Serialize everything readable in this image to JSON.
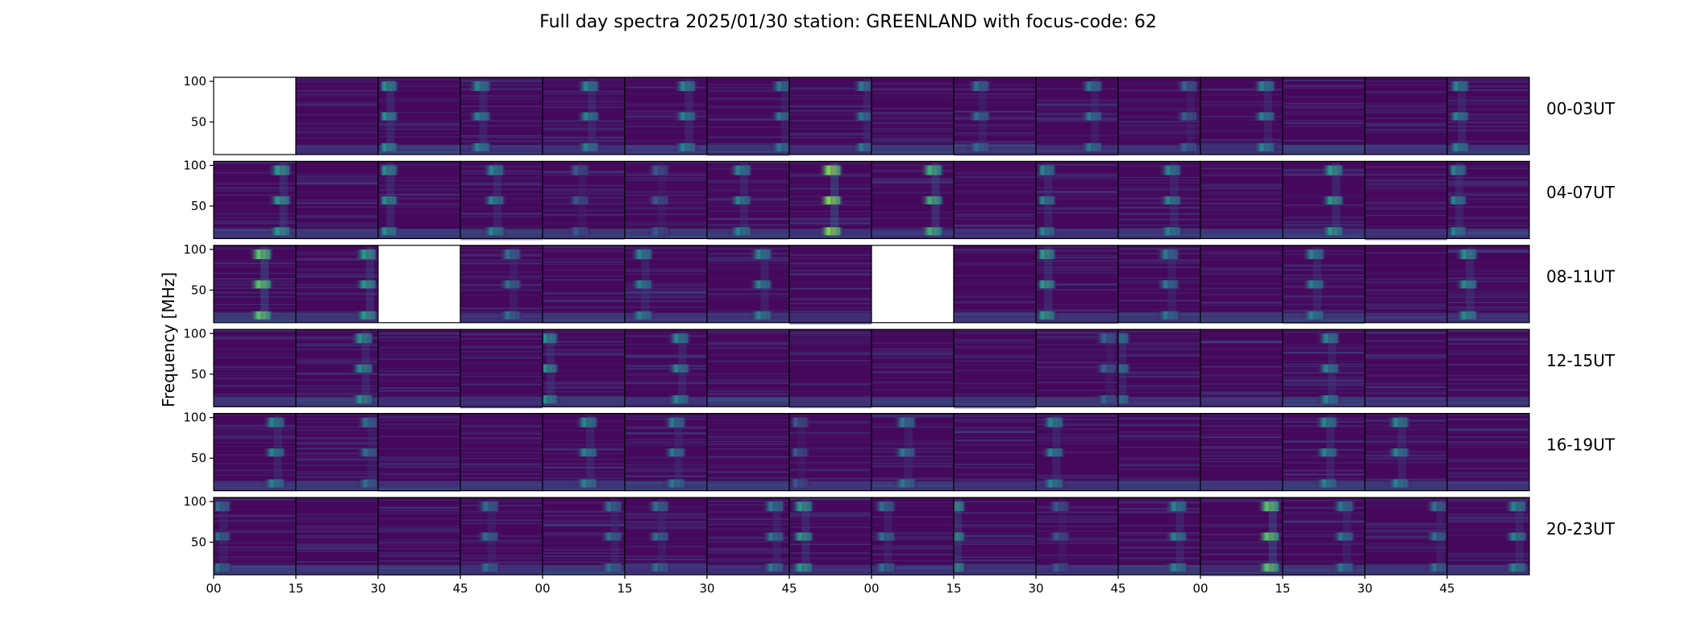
{
  "chart_data": {
    "type": "heatmap",
    "title": "Full day spectra 2025/01/30 station: GREENLAND with focus-code: 62",
    "ylabel": "Frequency [MHz]",
    "xlabel": "",
    "ylim": [
      10,
      105
    ],
    "y_ticks": [
      50,
      100
    ],
    "x_tick_labels": [
      "00",
      "15",
      "30",
      "45",
      "00",
      "15",
      "30",
      "45",
      "00",
      "15",
      "30",
      "45",
      "00",
      "15",
      "30",
      "45"
    ],
    "colormap": "viridis",
    "colormap_stops": [
      "#440154",
      "#3b528b",
      "#21918c",
      "#5ec962",
      "#fde725"
    ],
    "background_color": "#46085c",
    "missing_color": "#ffffff",
    "panels_per_row": 16,
    "panel_minutes": 15,
    "emission_bands_mhz": [
      [
        88,
        100
      ],
      [
        52,
        62
      ],
      [
        14,
        24
      ]
    ],
    "rows": [
      {
        "label": "00-03UT",
        "cells": [
          {
            "missing": true
          },
          {
            "burst_at": null,
            "intensity": 0.0
          },
          {
            "burst_at": 0.15,
            "intensity": 0.55
          },
          {
            "burst_at": 0.28,
            "intensity": 0.5
          },
          {
            "burst_at": 0.6,
            "intensity": 0.5
          },
          {
            "burst_at": 0.78,
            "intensity": 0.5
          },
          {
            "burst_at": 0.95,
            "intensity": 0.45
          },
          {
            "burst_at": 0.95,
            "intensity": 0.45
          },
          {
            "burst_at": null,
            "intensity": 0.0
          },
          {
            "burst_at": 0.35,
            "intensity": 0.4
          },
          {
            "burst_at": 0.72,
            "intensity": 0.45
          },
          {
            "burst_at": 0.88,
            "intensity": 0.35
          },
          {
            "burst_at": 0.82,
            "intensity": 0.5
          },
          {
            "burst_at": null,
            "intensity": 0.0
          },
          {
            "burst_at": null,
            "intensity": 0.0
          },
          {
            "burst_at": 0.18,
            "intensity": 0.5
          }
        ]
      },
      {
        "label": "04-07UT",
        "cells": [
          {
            "burst_at": 0.85,
            "intensity": 0.6
          },
          {
            "burst_at": null,
            "intensity": 0.0
          },
          {
            "burst_at": 0.15,
            "intensity": 0.55
          },
          {
            "burst_at": 0.45,
            "intensity": 0.5
          },
          {
            "burst_at": 0.48,
            "intensity": 0.3
          },
          {
            "burst_at": 0.45,
            "intensity": 0.3
          },
          {
            "burst_at": 0.45,
            "intensity": 0.5
          },
          {
            "burst_at": 0.55,
            "intensity": 0.9
          },
          {
            "burst_at": 0.78,
            "intensity": 0.7
          },
          {
            "burst_at": null,
            "intensity": 0.0
          },
          {
            "burst_at": 0.15,
            "intensity": 0.5
          },
          {
            "burst_at": 0.68,
            "intensity": 0.5
          },
          {
            "burst_at": null,
            "intensity": 0.0
          },
          {
            "burst_at": 0.65,
            "intensity": 0.6
          },
          {
            "burst_at": null,
            "intensity": 0.1
          },
          {
            "burst_at": 0.15,
            "intensity": 0.5
          }
        ]
      },
      {
        "label": "08-11UT",
        "cells": [
          {
            "burst_at": 0.62,
            "intensity": 0.8
          },
          {
            "burst_at": 0.9,
            "intensity": 0.6
          },
          {
            "missing": true
          },
          {
            "burst_at": 0.65,
            "intensity": 0.4
          },
          {
            "burst_at": null,
            "intensity": 0.0
          },
          {
            "burst_at": 0.25,
            "intensity": 0.5
          },
          {
            "burst_at": 0.7,
            "intensity": 0.5
          },
          {
            "burst_at": null,
            "intensity": 0.0
          },
          {
            "missing": true
          },
          {
            "burst_at": null,
            "intensity": 0.0
          },
          {
            "burst_at": 0.15,
            "intensity": 0.6
          },
          {
            "burst_at": 0.65,
            "intensity": 0.45
          },
          {
            "burst_at": null,
            "intensity": 0.0
          },
          {
            "burst_at": 0.42,
            "intensity": 0.5
          },
          {
            "burst_at": null,
            "intensity": 0.0
          },
          {
            "burst_at": 0.28,
            "intensity": 0.55
          }
        ]
      },
      {
        "label": "12-15UT",
        "cells": [
          {
            "burst_at": null,
            "intensity": 0.0
          },
          {
            "burst_at": 0.85,
            "intensity": 0.55
          },
          {
            "burst_at": null,
            "intensity": 0.0
          },
          {
            "burst_at": null,
            "intensity": 0.0
          },
          {
            "burst_at": 0.1,
            "intensity": 0.55
          },
          {
            "burst_at": 0.7,
            "intensity": 0.5
          },
          {
            "burst_at": null,
            "intensity": 0.0
          },
          {
            "burst_at": null,
            "intensity": 0.0
          },
          {
            "burst_at": null,
            "intensity": 0.0
          },
          {
            "burst_at": null,
            "intensity": 0.0
          },
          {
            "burst_at": 0.9,
            "intensity": 0.35
          },
          {
            "burst_at": 0.05,
            "intensity": 0.5
          },
          {
            "burst_at": null,
            "intensity": 0.0
          },
          {
            "burst_at": 0.6,
            "intensity": 0.5
          },
          {
            "burst_at": null,
            "intensity": 0.1
          },
          {
            "burst_at": null,
            "intensity": 0.1
          }
        ]
      },
      {
        "label": "16-19UT",
        "cells": [
          {
            "burst_at": 0.78,
            "intensity": 0.5
          },
          {
            "burst_at": 0.92,
            "intensity": 0.4
          },
          {
            "burst_at": null,
            "intensity": 0.0
          },
          {
            "burst_at": null,
            "intensity": 0.0
          },
          {
            "burst_at": 0.58,
            "intensity": 0.5
          },
          {
            "burst_at": 0.65,
            "intensity": 0.45
          },
          {
            "burst_at": null,
            "intensity": 0.0
          },
          {
            "burst_at": 0.15,
            "intensity": 0.3
          },
          {
            "burst_at": 0.45,
            "intensity": 0.45
          },
          {
            "burst_at": null,
            "intensity": 0.0
          },
          {
            "burst_at": 0.25,
            "intensity": 0.5
          },
          {
            "burst_at": null,
            "intensity": 0.0
          },
          {
            "burst_at": null,
            "intensity": 0.1
          },
          {
            "burst_at": 0.58,
            "intensity": 0.5
          },
          {
            "burst_at": 0.45,
            "intensity": 0.5
          },
          {
            "burst_at": null,
            "intensity": 0.0
          }
        ]
      },
      {
        "label": "20-23UT",
        "cells": [
          {
            "burst_at": 0.12,
            "intensity": 0.4
          },
          {
            "burst_at": null,
            "intensity": 0.0
          },
          {
            "burst_at": null,
            "intensity": 0.0
          },
          {
            "burst_at": 0.38,
            "intensity": 0.4
          },
          {
            "burst_at": 0.88,
            "intensity": 0.4
          },
          {
            "burst_at": 0.45,
            "intensity": 0.4
          },
          {
            "burst_at": 0.85,
            "intensity": 0.45
          },
          {
            "burst_at": 0.2,
            "intensity": 0.6
          },
          {
            "burst_at": 0.2,
            "intensity": 0.4
          },
          {
            "burst_at": 0.05,
            "intensity": 0.6
          },
          {
            "burst_at": 0.32,
            "intensity": 0.3
          },
          {
            "burst_at": 0.75,
            "intensity": 0.5
          },
          {
            "burst_at": 0.88,
            "intensity": 0.8
          },
          {
            "burst_at": 0.78,
            "intensity": 0.45
          },
          {
            "burst_at": 0.92,
            "intensity": 0.4
          },
          {
            "burst_at": 0.88,
            "intensity": 0.5
          }
        ]
      }
    ]
  }
}
